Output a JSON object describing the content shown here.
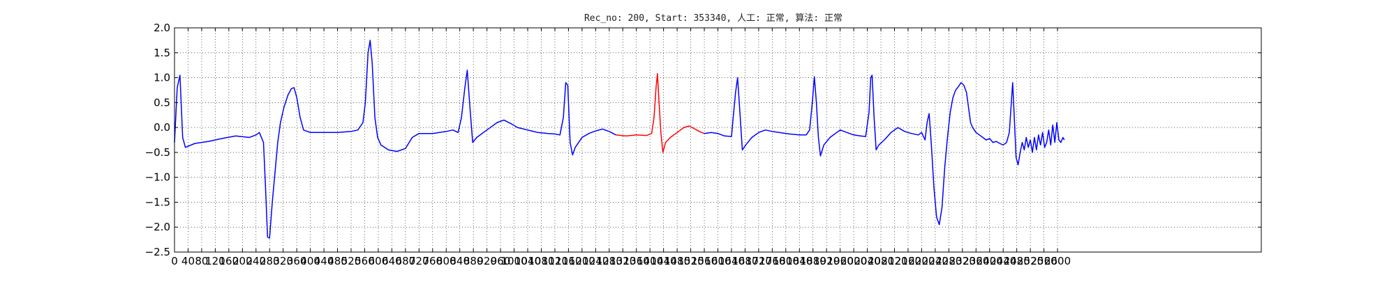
{
  "chart_data": {
    "type": "line",
    "title": "Rec_no: 200, Start: 353340, 人工: 正常, 算法: 正常",
    "xlabel": "",
    "ylabel": "",
    "xlim": [
      0,
      3200
    ],
    "ylim": [
      -2.5,
      2.0
    ],
    "grid": true,
    "y_ticks": [
      2.0,
      1.5,
      1.0,
      0.5,
      0.0,
      -0.5,
      -1.0,
      -1.5,
      -2.0,
      -2.5
    ],
    "y_tick_labels": [
      "2.0",
      "1.5",
      "1.0",
      "0.5",
      "0.0",
      "−0.5",
      "−1.0",
      "−1.5",
      "−2.0",
      "−2.5"
    ],
    "x_ticks": [
      0,
      40,
      80,
      120,
      160,
      200,
      240,
      280,
      320,
      360,
      400,
      440,
      480,
      520,
      560,
      600,
      640,
      680,
      720,
      760,
      800,
      840,
      880,
      920,
      960,
      1000,
      1040,
      1080,
      1120,
      1160,
      1200,
      1240,
      1280,
      1320,
      1360,
      1400,
      1440,
      1480,
      1520,
      1560,
      1600,
      1640,
      1680,
      1720,
      1760,
      1800,
      1840,
      1880,
      1920,
      1960,
      2000,
      2040,
      2080,
      2120,
      2160,
      2200,
      2240,
      2280,
      2320,
      2360,
      2400,
      2440,
      2480,
      2520,
      2560,
      2600
    ],
    "x_tick_labels": [
      "0",
      "40",
      "80",
      "120",
      "160",
      "200",
      "240",
      "280",
      "320",
      "360",
      "400",
      "440",
      "480",
      "520",
      "560",
      "600",
      "640",
      "680",
      "720",
      "760",
      "800",
      "840",
      "880",
      "920",
      "960",
      "1000",
      "1040",
      "1080",
      "1120",
      "1160",
      "1200",
      "1240",
      "1280",
      "1320",
      "1360",
      "1400",
      "1440",
      "1480",
      "1520",
      "1560",
      "1600",
      "1640",
      "1680",
      "1720",
      "1760",
      "1800",
      "1840",
      "1880",
      "1920",
      "1960",
      "2000",
      "2040",
      "2080",
      "2120",
      "2160",
      "2200",
      "2240",
      "2280",
      "2320",
      "2360",
      "2400",
      "2440",
      "2480",
      "2520",
      "2560",
      "2600"
    ],
    "series": [
      {
        "color": "#0000ff",
        "points": [
          [
            0,
            -0.3
          ],
          [
            8,
            0.8
          ],
          [
            16,
            1.05
          ],
          [
            24,
            -0.2
          ],
          [
            32,
            -0.4
          ],
          [
            60,
            -0.32
          ],
          [
            100,
            -0.28
          ],
          [
            140,
            -0.22
          ],
          [
            180,
            -0.17
          ],
          [
            220,
            -0.2
          ],
          [
            240,
            -0.15
          ],
          [
            250,
            -0.1
          ],
          [
            262,
            -0.3
          ],
          [
            268,
            -1.2
          ],
          [
            274,
            -2.2
          ],
          [
            280,
            -2.22
          ],
          [
            288,
            -1.5
          ],
          [
            296,
            -0.9
          ],
          [
            304,
            -0.3
          ],
          [
            312,
            0.1
          ],
          [
            322,
            0.4
          ],
          [
            334,
            0.65
          ],
          [
            344,
            0.78
          ],
          [
            352,
            0.8
          ],
          [
            360,
            0.6
          ],
          [
            370,
            0.2
          ],
          [
            380,
            -0.05
          ],
          [
            400,
            -0.1
          ],
          [
            440,
            -0.1
          ],
          [
            480,
            -0.1
          ],
          [
            520,
            -0.08
          ],
          [
            540,
            -0.05
          ],
          [
            555,
            0.1
          ],
          [
            562,
            0.5
          ],
          [
            570,
            1.5
          ],
          [
            576,
            1.75
          ],
          [
            582,
            1.3
          ],
          [
            590,
            0.2
          ],
          [
            598,
            -0.2
          ],
          [
            608,
            -0.35
          ],
          [
            630,
            -0.45
          ],
          [
            655,
            -0.48
          ],
          [
            680,
            -0.42
          ],
          [
            700,
            -0.2
          ],
          [
            720,
            -0.12
          ],
          [
            760,
            -0.12
          ],
          [
            800,
            -0.08
          ],
          [
            820,
            -0.05
          ],
          [
            835,
            -0.1
          ],
          [
            845,
            0.2
          ],
          [
            855,
            0.8
          ],
          [
            862,
            1.15
          ],
          [
            870,
            0.4
          ],
          [
            878,
            -0.3
          ],
          [
            890,
            -0.2
          ],
          [
            920,
            -0.05
          ],
          [
            950,
            0.1
          ],
          [
            970,
            0.15
          ],
          [
            990,
            0.08
          ],
          [
            1010,
            0
          ],
          [
            1040,
            -0.05
          ],
          [
            1070,
            -0.1
          ],
          [
            1100,
            -0.12
          ],
          [
            1120,
            -0.13
          ],
          [
            1135,
            -0.15
          ],
          [
            1145,
            0.2
          ],
          [
            1152,
            0.9
          ],
          [
            1158,
            0.85
          ],
          [
            1165,
            -0.3
          ],
          [
            1172,
            -0.55
          ],
          [
            1180,
            -0.4
          ],
          [
            1200,
            -0.2
          ],
          [
            1220,
            -0.12
          ],
          [
            1240,
            -0.07
          ],
          [
            1260,
            -0.03
          ],
          [
            1280,
            -0.08
          ],
          [
            1300,
            -0.15
          ]
        ]
      },
      {
        "color": "#ff0000",
        "points": [
          [
            1300,
            -0.15
          ],
          [
            1330,
            -0.17
          ],
          [
            1360,
            -0.15
          ],
          [
            1390,
            -0.16
          ],
          [
            1405,
            -0.12
          ],
          [
            1412,
            0.2
          ],
          [
            1418,
            0.8
          ],
          [
            1422,
            1.08
          ],
          [
            1426,
            0.6
          ],
          [
            1432,
            -0.1
          ],
          [
            1438,
            -0.5
          ],
          [
            1446,
            -0.3
          ],
          [
            1460,
            -0.2
          ],
          [
            1480,
            -0.1
          ],
          [
            1500,
            0
          ],
          [
            1515,
            0.03
          ],
          [
            1530,
            -0.02
          ],
          [
            1545,
            -0.08
          ],
          [
            1560,
            -0.12
          ]
        ]
      },
      {
        "color": "#0000ff",
        "points": [
          [
            1560,
            -0.12
          ],
          [
            1580,
            -0.1
          ],
          [
            1600,
            -0.12
          ],
          [
            1620,
            -0.17
          ],
          [
            1640,
            -0.18
          ],
          [
            1645,
            0.2
          ],
          [
            1652,
            0.7
          ],
          [
            1658,
            1.0
          ],
          [
            1664,
            0.4
          ],
          [
            1672,
            -0.45
          ],
          [
            1682,
            -0.35
          ],
          [
            1700,
            -0.2
          ],
          [
            1720,
            -0.1
          ],
          [
            1740,
            -0.05
          ],
          [
            1760,
            -0.08
          ],
          [
            1780,
            -0.1
          ],
          [
            1810,
            -0.13
          ],
          [
            1840,
            -0.15
          ],
          [
            1860,
            -0.15
          ],
          [
            1870,
            -0.05
          ],
          [
            1878,
            0.5
          ],
          [
            1884,
            1.02
          ],
          [
            1890,
            0.5
          ],
          [
            1896,
            -0.2
          ],
          [
            1902,
            -0.57
          ],
          [
            1912,
            -0.35
          ],
          [
            1930,
            -0.2
          ],
          [
            1960,
            -0.05
          ],
          [
            1980,
            -0.1
          ],
          [
            2000,
            -0.15
          ],
          [
            2020,
            -0.17
          ],
          [
            2035,
            -0.18
          ],
          [
            2045,
            0.3
          ],
          [
            2050,
            1.0
          ],
          [
            2054,
            1.05
          ],
          [
            2060,
            0.2
          ],
          [
            2066,
            -0.45
          ],
          [
            2074,
            -0.35
          ],
          [
            2090,
            -0.25
          ],
          [
            2110,
            -0.1
          ],
          [
            2130,
            0
          ],
          [
            2150,
            -0.08
          ],
          [
            2170,
            -0.12
          ],
          [
            2190,
            -0.15
          ],
          [
            2200,
            -0.1
          ],
          [
            2210,
            -0.25
          ],
          [
            2216,
            0.1
          ],
          [
            2222,
            0.28
          ],
          [
            2228,
            -0.3
          ],
          [
            2236,
            -1.2
          ],
          [
            2244,
            -1.8
          ],
          [
            2252,
            -1.95
          ],
          [
            2260,
            -1.6
          ],
          [
            2268,
            -0.8
          ],
          [
            2276,
            -0.2
          ],
          [
            2284,
            0.3
          ],
          [
            2292,
            0.6
          ],
          [
            2300,
            0.75
          ],
          [
            2308,
            0.82
          ],
          [
            2316,
            0.9
          ],
          [
            2324,
            0.85
          ],
          [
            2332,
            0.7
          ],
          [
            2338,
            0.4
          ],
          [
            2344,
            0.1
          ],
          [
            2350,
            0.0
          ],
          [
            2360,
            -0.1
          ],
          [
            2370,
            -0.15
          ],
          [
            2380,
            -0.2
          ],
          [
            2390,
            -0.25
          ],
          [
            2400,
            -0.22
          ],
          [
            2410,
            -0.3
          ],
          [
            2420,
            -0.28
          ],
          [
            2430,
            -0.32
          ],
          [
            2440,
            -0.35
          ],
          [
            2450,
            -0.3
          ],
          [
            2458,
            -0.1
          ],
          [
            2464,
            0.5
          ],
          [
            2468,
            0.9
          ],
          [
            2472,
            0.3
          ],
          [
            2478,
            -0.6
          ],
          [
            2484,
            -0.75
          ],
          [
            2490,
            -0.5
          ],
          [
            2496,
            -0.3
          ],
          [
            2502,
            -0.45
          ],
          [
            2508,
            -0.2
          ],
          [
            2514,
            -0.4
          ],
          [
            2520,
            -0.25
          ],
          [
            2526,
            -0.5
          ],
          [
            2532,
            -0.2
          ],
          [
            2538,
            -0.45
          ],
          [
            2544,
            -0.15
          ],
          [
            2550,
            -0.35
          ],
          [
            2556,
            -0.1
          ],
          [
            2562,
            -0.4
          ],
          [
            2568,
            -0.3
          ],
          [
            2574,
            -0.05
          ],
          [
            2580,
            -0.35
          ],
          [
            2586,
            0.05
          ],
          [
            2592,
            -0.3
          ],
          [
            2598,
            0.1
          ],
          [
            2604,
            -0.25
          ],
          [
            2610,
            -0.3
          ],
          [
            2616,
            -0.2
          ],
          [
            2620,
            -0.25
          ]
        ]
      }
    ]
  }
}
